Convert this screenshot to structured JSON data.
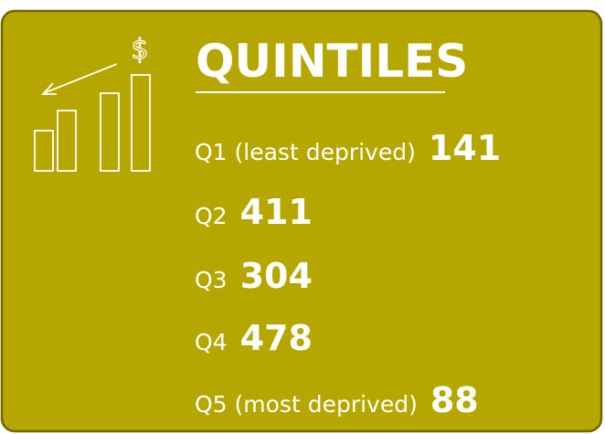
{
  "title": "QUINTILES",
  "icon_symbol": "$",
  "rows": [
    {
      "label": "Q1 (least deprived)",
      "value": 141
    },
    {
      "label": "Q2",
      "value": 411
    },
    {
      "label": "Q3",
      "value": 304
    },
    {
      "label": "Q4",
      "value": 478
    },
    {
      "label": "Q5 (most deprived)",
      "value": 88
    }
  ]
}
